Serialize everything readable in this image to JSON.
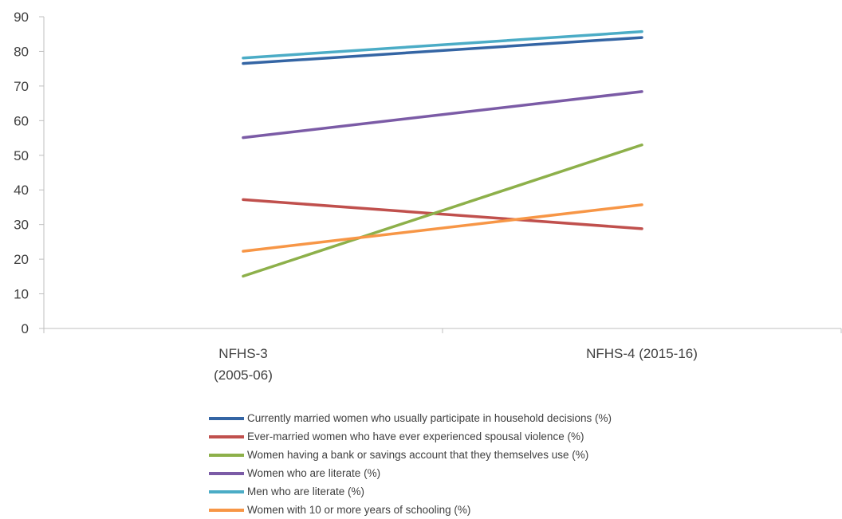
{
  "chart_data": {
    "type": "line",
    "categories": [
      "NFHS-3\n(2005-06)",
      "NFHS-4 (2015-16)"
    ],
    "ylim": [
      0,
      90
    ],
    "yticks": [
      0,
      10,
      20,
      30,
      40,
      50,
      60,
      70,
      80,
      90
    ],
    "grid": false,
    "legend_position": "bottom",
    "series": [
      {
        "name": "Currently married women who usually participate in household decisions (%)",
        "color": "#3465a4",
        "values": [
          76.5,
          84.0
        ]
      },
      {
        "name": "Ever-married women who have ever experienced spousal violence (%)",
        "color": "#c0504d",
        "values": [
          37.2,
          28.8
        ]
      },
      {
        "name": "Women having a bank or savings account that they themselves use (%)",
        "color": "#8db04a",
        "values": [
          15.1,
          53.0
        ]
      },
      {
        "name": "Women who are literate (%)",
        "color": "#7b5ba6",
        "values": [
          55.1,
          68.4
        ]
      },
      {
        "name": "Men who are literate (%)",
        "color": "#4bacc6",
        "values": [
          78.1,
          85.7
        ]
      },
      {
        "name": "Women with 10 or more years of schooling (%)",
        "color": "#f79646",
        "values": [
          22.3,
          35.7
        ]
      }
    ]
  }
}
